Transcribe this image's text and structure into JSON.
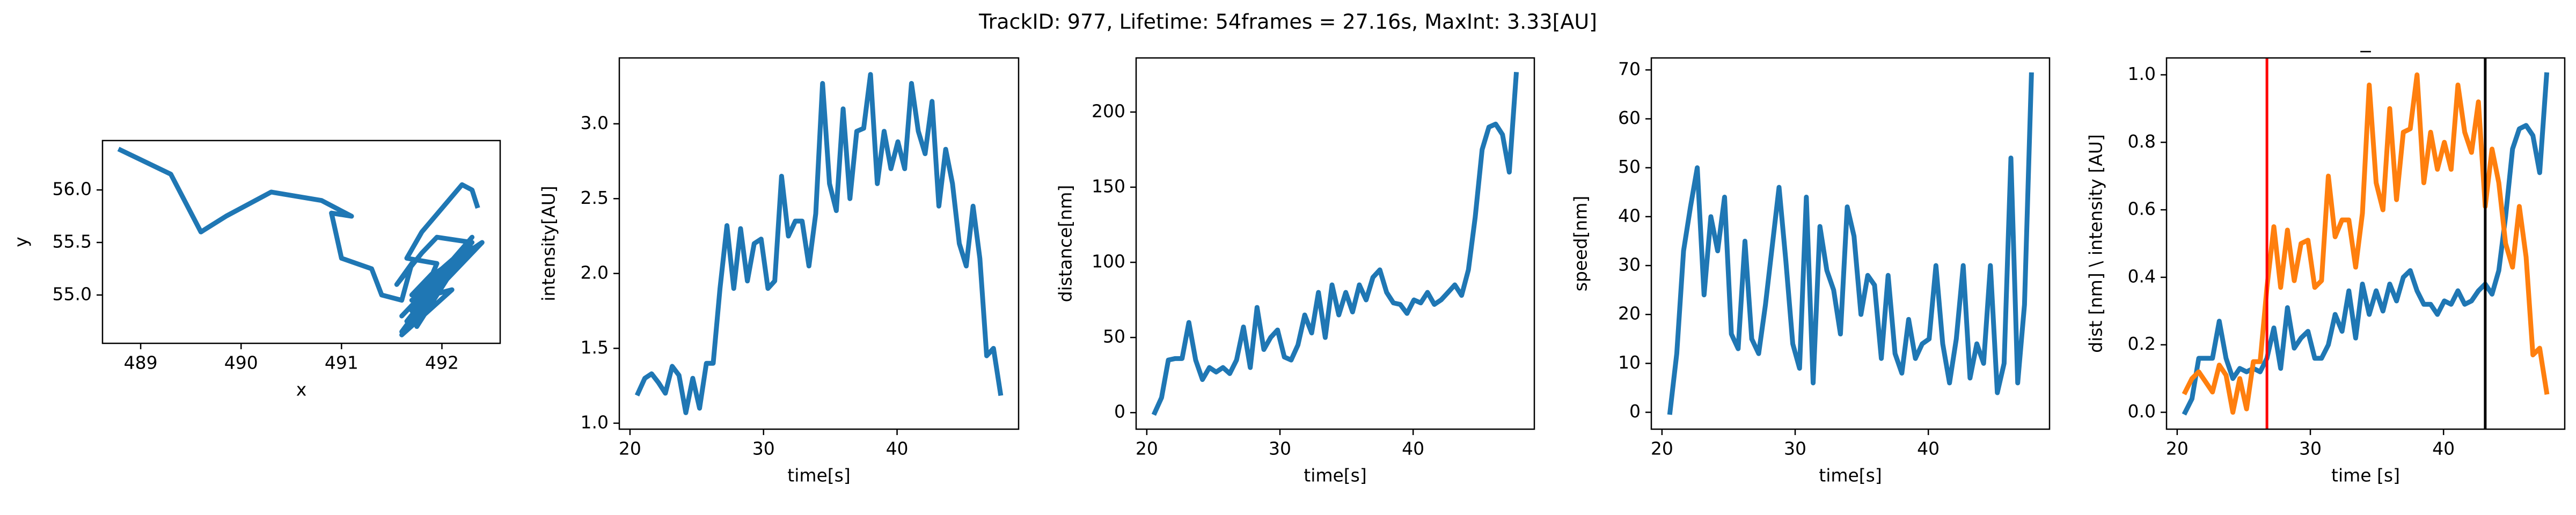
{
  "title": "TrackID: 977, Lifetime: 54frames = 27.16s, MaxInt: 3.33[AU]",
  "chart_data": [
    {
      "type": "line",
      "xlabel": "x",
      "ylabel": "y",
      "x": [
        488.8,
        489.3,
        489.6,
        489.85,
        490.3,
        490.8,
        491.1,
        490.9,
        491.0,
        491.3,
        491.4,
        491.6,
        491.7,
        491.55,
        491.8,
        491.95,
        492.3,
        491.7,
        492.2,
        491.6,
        492.0,
        491.65,
        492.3,
        491.6,
        492.1,
        491.7,
        492.4,
        491.65,
        492.15,
        491.7,
        492.0,
        491.75,
        492.25,
        491.6,
        492.1,
        491.7,
        492.2,
        491.8,
        492.3,
        491.75,
        491.9,
        492.0,
        492.4,
        491.85,
        492.3,
        491.7,
        491.9,
        491.75,
        491.95,
        491.65,
        491.8,
        492.2,
        492.3,
        492.35
      ],
      "series": [
        {
          "color": "#1f77b4",
          "values": [
            56.38,
            56.15,
            55.6,
            55.75,
            55.98,
            55.9,
            55.75,
            55.78,
            55.35,
            55.25,
            55.0,
            54.95,
            55.3,
            55.1,
            55.4,
            55.55,
            55.5,
            55.0,
            55.4,
            54.8,
            55.2,
            54.7,
            55.45,
            54.65,
            55.3,
            54.9,
            55.5,
            54.75,
            55.35,
            54.85,
            55.25,
            54.7,
            55.45,
            54.62,
            55.05,
            54.95,
            55.3,
            55.0,
            55.55,
            54.9,
            55.1,
            55.2,
            55.5,
            55.15,
            55.45,
            55.0,
            55.2,
            54.85,
            55.3,
            55.35,
            55.6,
            56.05,
            56.0,
            55.85
          ]
        }
      ],
      "xlim": [
        488.62,
        492.58
      ],
      "xticks": [
        489,
        490,
        491,
        492
      ],
      "ylim": [
        54.54,
        56.47
      ],
      "yticks": [
        {
          "value": 55.0,
          "label": "55.0"
        },
        {
          "value": 55.5,
          "label": "55.5"
        },
        {
          "value": 56.0,
          "label": "56.0"
        }
      ]
    },
    {
      "type": "line",
      "xlabel": "time[s]",
      "ylabel": "intensity[AU]",
      "x": [
        20.6,
        21.11,
        21.62,
        22.14,
        22.65,
        23.16,
        23.67,
        24.18,
        24.7,
        25.21,
        25.72,
        26.23,
        26.74,
        27.26,
        27.77,
        28.28,
        28.79,
        29.3,
        29.82,
        30.33,
        30.84,
        31.35,
        31.86,
        32.38,
        32.89,
        33.4,
        33.91,
        34.42,
        34.94,
        35.45,
        35.96,
        36.47,
        36.98,
        37.5,
        38.01,
        38.52,
        39.03,
        39.54,
        40.06,
        40.57,
        41.08,
        41.59,
        42.1,
        42.62,
        43.13,
        43.64,
        44.15,
        44.66,
        45.18,
        45.69,
        46.2,
        46.71,
        47.22,
        47.74
      ],
      "series": [
        {
          "color": "#1f77b4",
          "values": [
            1.2,
            1.3,
            1.33,
            1.27,
            1.2,
            1.38,
            1.32,
            1.07,
            1.3,
            1.1,
            1.4,
            1.4,
            1.9,
            2.32,
            1.9,
            2.3,
            1.95,
            2.2,
            2.23,
            1.9,
            1.95,
            2.65,
            2.25,
            2.35,
            2.35,
            2.05,
            2.4,
            3.27,
            2.6,
            2.42,
            3.1,
            2.5,
            2.95,
            2.97,
            3.33,
            2.6,
            2.95,
            2.7,
            2.88,
            2.7,
            3.27,
            2.95,
            2.8,
            3.15,
            2.45,
            2.83,
            2.6,
            2.2,
            2.05,
            2.45,
            2.1,
            1.45,
            1.5,
            1.2
          ]
        }
      ],
      "xlim": [
        19.2,
        49.1
      ],
      "xticks": [
        20,
        30,
        40
      ],
      "ylim": [
        0.96,
        3.44
      ],
      "yticks": [
        {
          "value": 1.0,
          "label": "1.0"
        },
        {
          "value": 1.5,
          "label": "1.5"
        },
        {
          "value": 2.0,
          "label": "2.0"
        },
        {
          "value": 2.5,
          "label": "2.5"
        },
        {
          "value": 3.0,
          "label": "3.0"
        }
      ]
    },
    {
      "type": "line",
      "xlabel": "time[s]",
      "ylabel": "distance[nm]",
      "x": [
        20.6,
        21.11,
        21.62,
        22.14,
        22.65,
        23.16,
        23.67,
        24.18,
        24.7,
        25.21,
        25.72,
        26.23,
        26.74,
        27.26,
        27.77,
        28.28,
        28.79,
        29.3,
        29.82,
        30.33,
        30.84,
        31.35,
        31.86,
        32.38,
        32.89,
        33.4,
        33.91,
        34.42,
        34.94,
        35.45,
        35.96,
        36.47,
        36.98,
        37.5,
        38.01,
        38.52,
        39.03,
        39.54,
        40.06,
        40.57,
        41.08,
        41.59,
        42.1,
        42.62,
        43.13,
        43.64,
        44.15,
        44.66,
        45.18,
        45.69,
        46.2,
        46.71,
        47.22,
        47.74
      ],
      "series": [
        {
          "color": "#1f77b4",
          "values": [
            0,
            10,
            35,
            36,
            36,
            60,
            35,
            22,
            30,
            27,
            30,
            26,
            35,
            57,
            30,
            70,
            42,
            50,
            55,
            37,
            35,
            45,
            65,
            53,
            80,
            50,
            85,
            65,
            80,
            67,
            85,
            75,
            90,
            95,
            80,
            73,
            72,
            66,
            75,
            73,
            80,
            72,
            75,
            80,
            85,
            78,
            95,
            130,
            175,
            190,
            192,
            185,
            160,
            225
          ]
        }
      ],
      "xlim": [
        19.2,
        49.1
      ],
      "xticks": [
        20,
        30,
        40
      ],
      "ylim": [
        -11,
        236
      ],
      "yticks": [
        0,
        50,
        100,
        150,
        200
      ]
    },
    {
      "type": "line",
      "xlabel": "time[s]",
      "ylabel": "speed[nm]",
      "x": [
        20.6,
        21.11,
        21.62,
        22.14,
        22.65,
        23.16,
        23.67,
        24.18,
        24.7,
        25.21,
        25.72,
        26.23,
        26.74,
        27.26,
        27.77,
        28.28,
        28.79,
        29.3,
        29.82,
        30.33,
        30.84,
        31.35,
        31.86,
        32.38,
        32.89,
        33.4,
        33.91,
        34.42,
        34.94,
        35.45,
        35.96,
        36.47,
        36.98,
        37.5,
        38.01,
        38.52,
        39.03,
        39.54,
        40.06,
        40.57,
        41.08,
        41.59,
        42.1,
        42.62,
        43.13,
        43.64,
        44.15,
        44.66,
        45.18,
        45.69,
        46.2,
        46.71,
        47.22,
        47.74
      ],
      "series": [
        {
          "color": "#1f77b4",
          "values": [
            0,
            12,
            33,
            42,
            50,
            24,
            40,
            33,
            44,
            16,
            13,
            35,
            15,
            12,
            22,
            34,
            46,
            31,
            14,
            9,
            44,
            6,
            38,
            29,
            25,
            16,
            42,
            36,
            20,
            28,
            26,
            11,
            28,
            12,
            8,
            19,
            11,
            14,
            15,
            30,
            14,
            6,
            15,
            30,
            7,
            14,
            10,
            30,
            4,
            10,
            52,
            6,
            22,
            69
          ]
        }
      ],
      "xlim": [
        19.2,
        49.1
      ],
      "xticks": [
        20,
        30,
        40
      ],
      "ylim": [
        -3.45,
        72.45
      ],
      "yticks": [
        0,
        10,
        20,
        30,
        40,
        50,
        60,
        70
      ]
    },
    {
      "type": "line",
      "title": "_",
      "xlabel": "time [s]",
      "ylabel": "dist [nm] \\ intensity [AU]",
      "x": [
        20.6,
        21.11,
        21.62,
        22.14,
        22.65,
        23.16,
        23.67,
        24.18,
        24.7,
        25.21,
        25.72,
        26.23,
        26.74,
        27.26,
        27.77,
        28.28,
        28.79,
        29.3,
        29.82,
        30.33,
        30.84,
        31.35,
        31.86,
        32.38,
        32.89,
        33.4,
        33.91,
        34.42,
        34.94,
        35.45,
        35.96,
        36.47,
        36.98,
        37.5,
        38.01,
        38.52,
        39.03,
        39.54,
        40.06,
        40.57,
        41.08,
        41.59,
        42.1,
        42.62,
        43.13,
        43.64,
        44.15,
        44.66,
        45.18,
        45.69,
        46.2,
        46.71,
        47.22,
        47.74
      ],
      "series": [
        {
          "color": "#1f77b4",
          "values": [
            0,
            0.04,
            0.16,
            0.16,
            0.16,
            0.27,
            0.16,
            0.1,
            0.13,
            0.12,
            0.13,
            0.12,
            0.16,
            0.25,
            0.13,
            0.31,
            0.19,
            0.22,
            0.24,
            0.16,
            0.16,
            0.2,
            0.29,
            0.24,
            0.36,
            0.22,
            0.38,
            0.29,
            0.36,
            0.3,
            0.38,
            0.33,
            0.4,
            0.42,
            0.36,
            0.32,
            0.32,
            0.29,
            0.33,
            0.32,
            0.36,
            0.32,
            0.33,
            0.36,
            0.38,
            0.35,
            0.42,
            0.58,
            0.78,
            0.84,
            0.85,
            0.82,
            0.71,
            1.0
          ]
        },
        {
          "color": "#ff7f0e",
          "values": [
            0.06,
            0.1,
            0.12,
            0.09,
            0.06,
            0.14,
            0.11,
            0,
            0.1,
            0.01,
            0.15,
            0.15,
            0.37,
            0.55,
            0.37,
            0.54,
            0.39,
            0.5,
            0.51,
            0.37,
            0.39,
            0.7,
            0.52,
            0.57,
            0.57,
            0.43,
            0.59,
            0.97,
            0.68,
            0.6,
            0.9,
            0.63,
            0.83,
            0.84,
            1.0,
            0.68,
            0.83,
            0.72,
            0.8,
            0.72,
            0.97,
            0.83,
            0.77,
            0.92,
            0.61,
            0.78,
            0.68,
            0.5,
            0.43,
            0.61,
            0.46,
            0.17,
            0.19,
            0.06
          ]
        }
      ],
      "vlines": [
        {
          "x": 26.74,
          "color": "#ff0000"
        },
        {
          "x": 43.13,
          "color": "#000000"
        }
      ],
      "xlim": [
        19.2,
        49.1
      ],
      "xticks": [
        20,
        30,
        40
      ],
      "ylim": [
        -0.05,
        1.05
      ],
      "yticks": [
        {
          "value": 0.0,
          "label": "0.0"
        },
        {
          "value": 0.2,
          "label": "0.2"
        },
        {
          "value": 0.4,
          "label": "0.4"
        },
        {
          "value": 0.6,
          "label": "0.6"
        },
        {
          "value": 0.8,
          "label": "0.8"
        },
        {
          "value": 1.0,
          "label": "1.0"
        }
      ]
    }
  ]
}
